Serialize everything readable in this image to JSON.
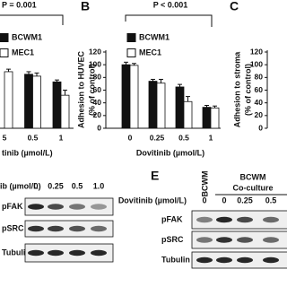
{
  "chart_data": [
    {
      "type": "bar",
      "annotation": "P = 0.001",
      "categories": [
        "5",
        "0.5",
        "1"
      ],
      "xlabel": "tinib (µmol/L)",
      "ylim": [
        0,
        120
      ],
      "series": [
        {
          "name": "BCWM1",
          "color": "#111111",
          "values": [
            null,
            85,
            73
          ],
          "errors": [
            null,
            4,
            3
          ]
        },
        {
          "name": "MEC1",
          "color": "#ffffff",
          "values": [
            89,
            82,
            52
          ],
          "errors": [
            4,
            5,
            8
          ]
        }
      ]
    },
    {
      "type": "bar",
      "label": "B",
      "annotation": "P < 0.001",
      "categories": [
        "0",
        "0.25",
        "0.5",
        "1"
      ],
      "xlabel": "Dovitinib (µmol/L)",
      "ylabel": [
        "Adhesion to HUVEC",
        "(% of control)"
      ],
      "ylim": [
        0,
        120
      ],
      "yticks": [
        0,
        20,
        40,
        60,
        80,
        100,
        120
      ],
      "series": [
        {
          "name": "BCWM1",
          "color": "#111111",
          "values": [
            100,
            74,
            65,
            33
          ],
          "errors": [
            4,
            3,
            4,
            3
          ]
        },
        {
          "name": "MEC1",
          "color": "#ffffff",
          "values": [
            99,
            71,
            42,
            32
          ],
          "errors": [
            3,
            6,
            8,
            3
          ]
        }
      ]
    },
    {
      "type": "bar",
      "label": "C",
      "ylabel": [
        "Adhesion to stroma",
        "(% of control)"
      ],
      "ylim": [
        0,
        120
      ],
      "yticks": [
        0,
        20,
        40,
        60,
        80,
        100,
        120
      ]
    }
  ],
  "blots": [
    {
      "header": "ib (µmol/L)",
      "doses": [
        "0",
        "0.25",
        "0.5",
        "1.0"
      ],
      "rows": [
        "pFAK",
        "pSRC",
        "Tubulin"
      ]
    },
    {
      "label": "E",
      "group": "BCWM",
      "coculture": [
        "BCWM",
        "Co-culture"
      ],
      "header": "Dovitinib (µmol/L)",
      "doses": [
        "0",
        "0",
        "0.25",
        "0.5"
      ],
      "rows": [
        "pFAK",
        "pSRC",
        "Tubulin"
      ]
    }
  ]
}
